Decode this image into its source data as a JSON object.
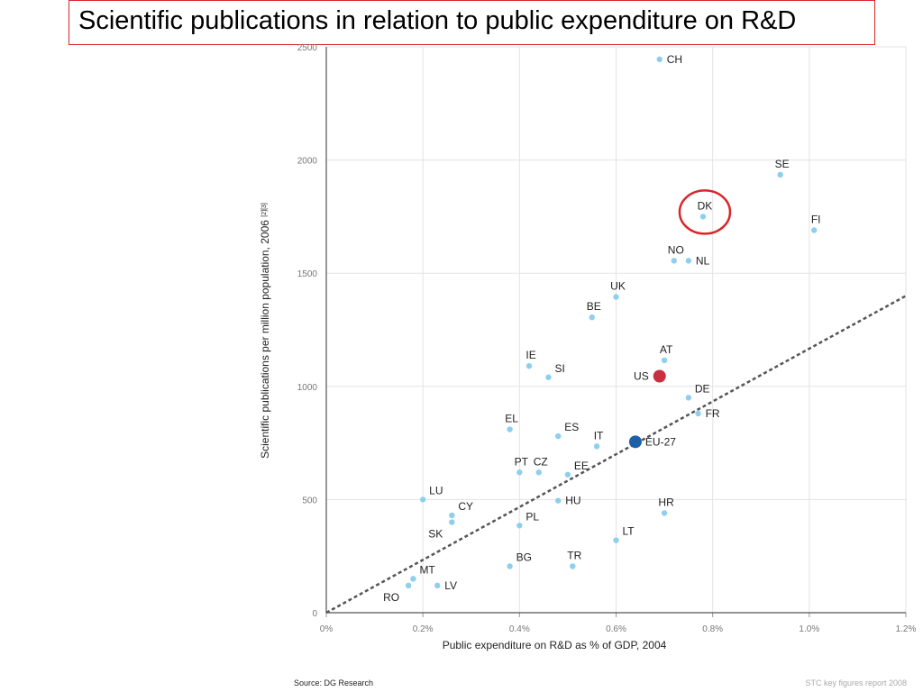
{
  "slide": {
    "title": "Scientific publications in relation to public expenditure on R&D",
    "source": "Source:  DG Research",
    "footer_note": "STC key figures report 2008"
  },
  "colors": {
    "point": "#8ecfee",
    "us": "#c8303f",
    "eu": "#1f5fa8",
    "grid": "#e3e3e3",
    "trend": "#555555",
    "highlight": "#d9262b"
  },
  "chart_data": {
    "type": "scatter",
    "title": "",
    "xlabel": "Public expenditure on R&D as % of GDP, 2004",
    "ylabel": "Scientific publications per million population, 2006",
    "ylabel_note": "[2][3]",
    "xlim": [
      0,
      1.2
    ],
    "ylim": [
      0,
      2500
    ],
    "x_ticks": [
      0,
      0.2,
      0.4,
      0.6,
      0.8,
      1.0,
      1.2
    ],
    "x_tick_labels": [
      "0%",
      "0.2%",
      "0.4%",
      "0.6%",
      "0.8%",
      "1.0%",
      "1.2%"
    ],
    "y_ticks": [
      0,
      500,
      1000,
      1500,
      2000,
      2500
    ],
    "y_tick_labels": [
      "0",
      "500",
      "1000",
      "1500",
      "2000",
      "2500"
    ],
    "grid": true,
    "trend_line": {
      "style": "dashed",
      "from": [
        0,
        0
      ],
      "to": [
        1.2,
        1400
      ]
    },
    "highlighted": "DK",
    "points": [
      {
        "label": "CH",
        "x": 0.69,
        "y": 2445,
        "label_pos": "right"
      },
      {
        "label": "SE",
        "x": 0.94,
        "y": 1935,
        "label_pos": "above"
      },
      {
        "label": "DK",
        "x": 0.78,
        "y": 1750,
        "label_pos": "above"
      },
      {
        "label": "FI",
        "x": 1.01,
        "y": 1690,
        "label_pos": "above"
      },
      {
        "label": "NO",
        "x": 0.72,
        "y": 1555,
        "label_pos": "above"
      },
      {
        "label": "NL",
        "x": 0.75,
        "y": 1555,
        "label_pos": "right"
      },
      {
        "label": "UK",
        "x": 0.6,
        "y": 1395,
        "label_pos": "above"
      },
      {
        "label": "BE",
        "x": 0.55,
        "y": 1305,
        "label_pos": "above"
      },
      {
        "label": "AT",
        "x": 0.7,
        "y": 1115,
        "label_pos": "above"
      },
      {
        "label": "IE",
        "x": 0.42,
        "y": 1090,
        "label_pos": "above"
      },
      {
        "label": "SI",
        "x": 0.46,
        "y": 1040,
        "label_pos": "aboveright"
      },
      {
        "label": "US",
        "x": 0.69,
        "y": 1045,
        "label_pos": "left",
        "kind": "us"
      },
      {
        "label": "DE",
        "x": 0.75,
        "y": 950,
        "label_pos": "aboveright"
      },
      {
        "label": "FR",
        "x": 0.77,
        "y": 880,
        "label_pos": "right"
      },
      {
        "label": "EL",
        "x": 0.38,
        "y": 810,
        "label_pos": "above"
      },
      {
        "label": "ES",
        "x": 0.48,
        "y": 780,
        "label_pos": "aboveright"
      },
      {
        "label": "IT",
        "x": 0.56,
        "y": 735,
        "label_pos": "above"
      },
      {
        "label": "EU-27",
        "x": 0.64,
        "y": 755,
        "label_pos": "right",
        "kind": "eu"
      },
      {
        "label": "PT",
        "x": 0.4,
        "y": 620,
        "label_pos": "above"
      },
      {
        "label": "CZ",
        "x": 0.44,
        "y": 620,
        "label_pos": "above"
      },
      {
        "label": "EE",
        "x": 0.5,
        "y": 610,
        "label_pos": "aboveright"
      },
      {
        "label": "LU",
        "x": 0.2,
        "y": 500,
        "label_pos": "aboveright"
      },
      {
        "label": "HU",
        "x": 0.48,
        "y": 495,
        "label_pos": "right"
      },
      {
        "label": "CY",
        "x": 0.26,
        "y": 430,
        "label_pos": "aboveright"
      },
      {
        "label": "SK",
        "x": 0.26,
        "y": 400,
        "label_pos": "belowleft"
      },
      {
        "label": "HR",
        "x": 0.7,
        "y": 440,
        "label_pos": "above"
      },
      {
        "label": "PL",
        "x": 0.4,
        "y": 385,
        "label_pos": "aboveright"
      },
      {
        "label": "LT",
        "x": 0.6,
        "y": 320,
        "label_pos": "aboveright"
      },
      {
        "label": "BG",
        "x": 0.38,
        "y": 205,
        "label_pos": "aboveright"
      },
      {
        "label": "TR",
        "x": 0.51,
        "y": 205,
        "label_pos": "above"
      },
      {
        "label": "MT",
        "x": 0.18,
        "y": 150,
        "label_pos": "aboveright"
      },
      {
        "label": "LV",
        "x": 0.23,
        "y": 120,
        "label_pos": "right"
      },
      {
        "label": "RO",
        "x": 0.17,
        "y": 120,
        "label_pos": "belowleft"
      }
    ]
  }
}
